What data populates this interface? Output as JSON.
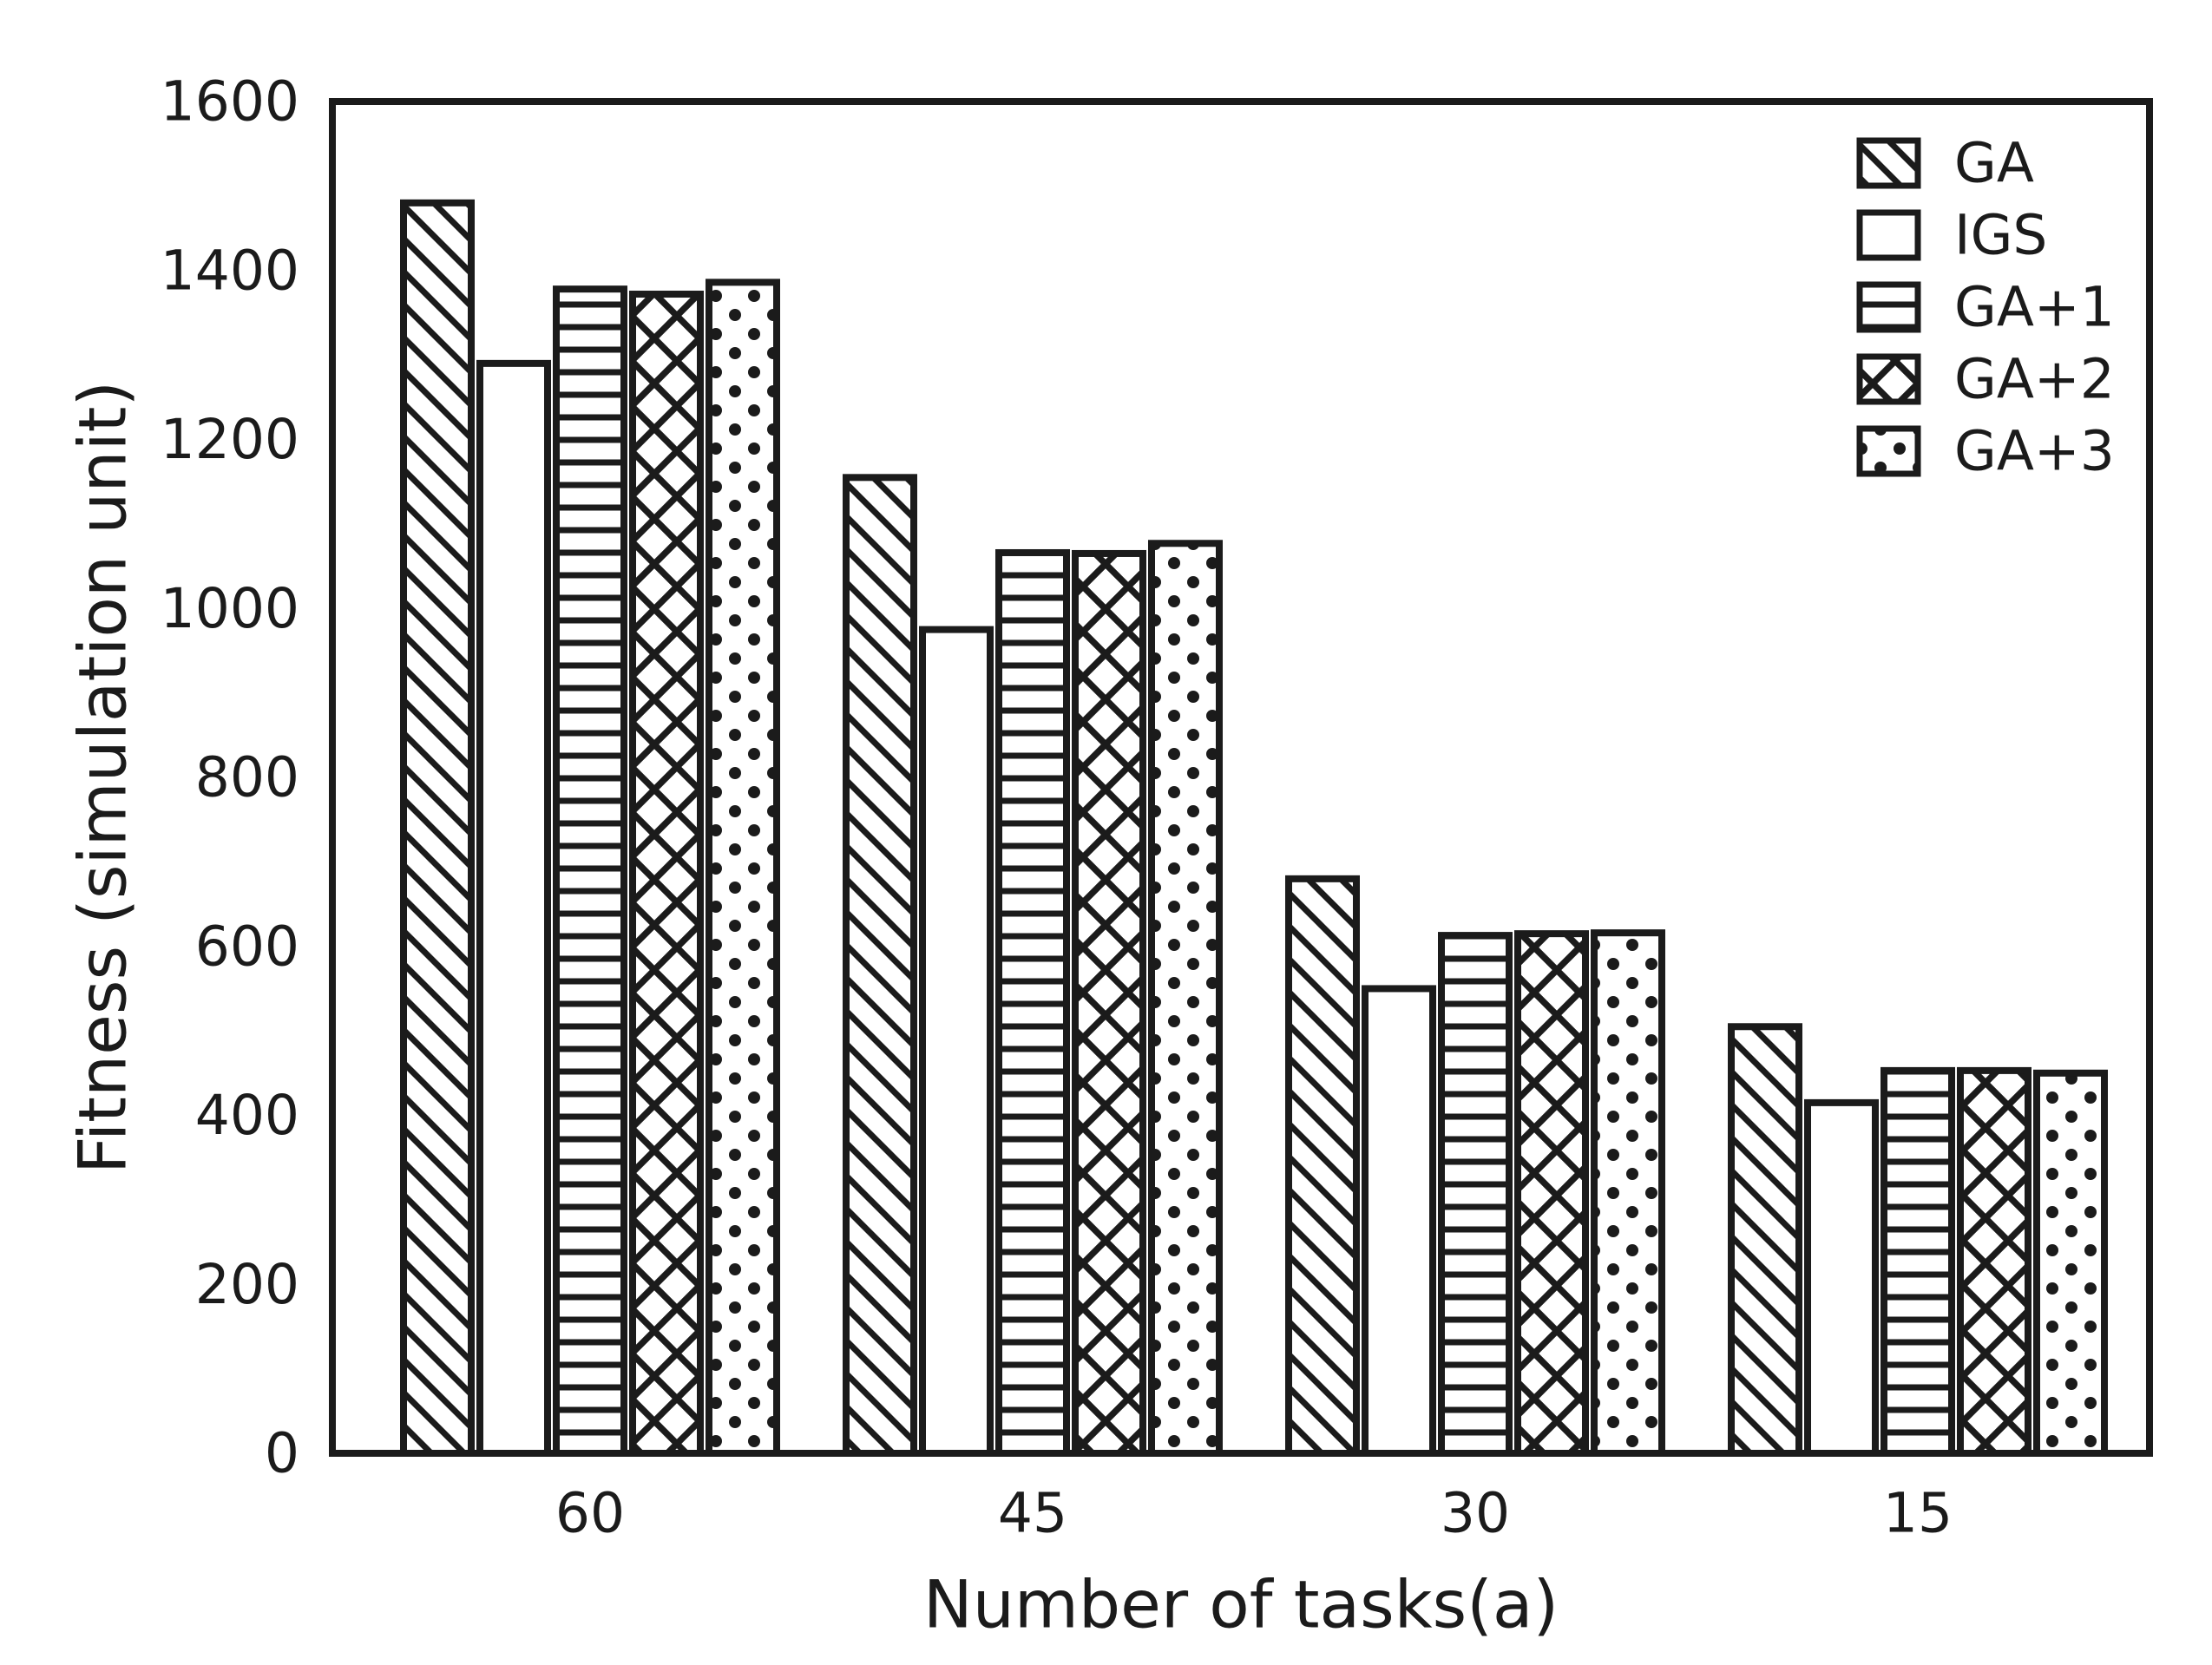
{
  "chart_data": {
    "type": "bar",
    "title": "",
    "xlabel": "Number of tasks(a)",
    "ylabel": "Fitness (simulation unit)",
    "categories": [
      "60",
      "45",
      "30",
      "15"
    ],
    "series": [
      {
        "name": "GA",
        "hatch": "diagonal-hatch",
        "values": [
          1480,
          1155,
          680,
          505
        ]
      },
      {
        "name": "IGS",
        "hatch": "no-hatch",
        "values": [
          1290,
          975,
          550,
          415
        ]
      },
      {
        "name": "GA+1",
        "hatch": "horizontal-hatch",
        "values": [
          1378,
          1066,
          613,
          453
        ]
      },
      {
        "name": "GA+2",
        "hatch": "cross-hatch",
        "values": [
          1372,
          1065,
          615,
          453
        ]
      },
      {
        "name": "GA+3",
        "hatch": "dot-hatch",
        "values": [
          1386,
          1077,
          616,
          450
        ]
      }
    ],
    "ylim": [
      0,
      1600
    ],
    "y_ticks": [
      0,
      200,
      400,
      600,
      800,
      1000,
      1200,
      1400,
      1600
    ],
    "x_ticks": [
      "60",
      "45",
      "30",
      "15"
    ],
    "legend_position": "upper right",
    "legend_entries": [
      "GA",
      "IGS",
      "GA+1",
      "GA+2",
      "GA+3"
    ],
    "grid": false,
    "colors": {
      "ink": "#1b1b1b",
      "background": "#ffffff"
    }
  }
}
